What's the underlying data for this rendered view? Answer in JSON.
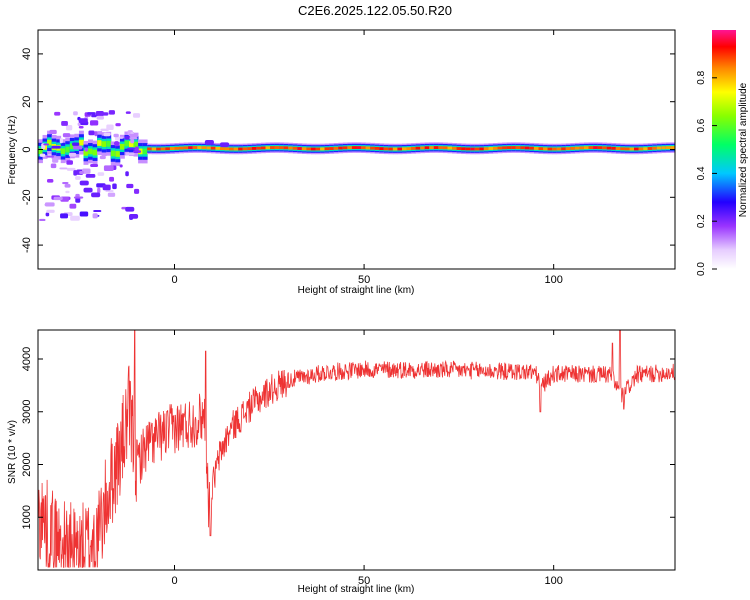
{
  "title": "C2E6.2025.122.05.50.R20",
  "chart_data": [
    {
      "type": "heatmap",
      "xlabel": "Height of straight line (km)",
      "ylabel": "Frequency (Hz)",
      "xlim": [
        -36,
        132
      ],
      "ylim": [
        -50,
        50
      ],
      "xticks": [
        0,
        50,
        100
      ],
      "yticks": [
        -40,
        -20,
        0,
        20,
        40
      ],
      "grid": false,
      "signal": {
        "centre_frequency_hz": 0.5,
        "dominant_amplitude": 0.9,
        "scatter_region_km": [
          -36,
          -10
        ],
        "scatter_frequency_range_hz": [
          -30,
          15
        ]
      },
      "colorbar": {
        "label": "Normalized spectral amplitude",
        "range": [
          0,
          1
        ],
        "ticks": [
          0,
          0.2,
          0.4,
          0.6,
          0.8
        ],
        "tick_labels": [
          "0.0",
          "0.2",
          "0.4",
          "0.6",
          "0.8"
        ],
        "stops": [
          {
            "v": 0.0,
            "color": "#ffffff"
          },
          {
            "v": 0.08,
            "color": "#e6ccff"
          },
          {
            "v": 0.18,
            "color": "#9933ff"
          },
          {
            "v": 0.28,
            "color": "#2200ff"
          },
          {
            "v": 0.4,
            "color": "#00c8ff"
          },
          {
            "v": 0.52,
            "color": "#00ff66"
          },
          {
            "v": 0.64,
            "color": "#88ff00"
          },
          {
            "v": 0.74,
            "color": "#ffff00"
          },
          {
            "v": 0.84,
            "color": "#ff8800"
          },
          {
            "v": 0.93,
            "color": "#ff0000"
          },
          {
            "v": 1.0,
            "color": "#ff1493"
          }
        ]
      }
    },
    {
      "type": "line",
      "xlabel": "Height of straight line (km)",
      "ylabel": "SNR (10 * v/v)",
      "xlim": [
        -36,
        132
      ],
      "ylim": [
        0,
        4550
      ],
      "xticks": [
        0,
        50,
        100
      ],
      "yticks": [
        1000,
        2000,
        3000,
        4000
      ],
      "grid": false,
      "series_color": "#ee3333",
      "trend": [
        {
          "x": -36,
          "y": 1100
        },
        {
          "x": -30,
          "y": 450
        },
        {
          "x": -25,
          "y": 350
        },
        {
          "x": -20,
          "y": 650
        },
        {
          "x": -17,
          "y": 1600
        },
        {
          "x": -14,
          "y": 2300
        },
        {
          "x": -12,
          "y": 3000
        },
        {
          "x": -10,
          "y": 2000
        },
        {
          "x": -7,
          "y": 2400
        },
        {
          "x": 0,
          "y": 2700
        },
        {
          "x": 5,
          "y": 2800
        },
        {
          "x": 8,
          "y": 2950
        },
        {
          "x": 9,
          "y": 1300
        },
        {
          "x": 12,
          "y": 2200
        },
        {
          "x": 15,
          "y": 2700
        },
        {
          "x": 20,
          "y": 3100
        },
        {
          "x": 25,
          "y": 3400
        },
        {
          "x": 30,
          "y": 3600
        },
        {
          "x": 40,
          "y": 3750
        },
        {
          "x": 50,
          "y": 3800
        },
        {
          "x": 60,
          "y": 3800
        },
        {
          "x": 80,
          "y": 3780
        },
        {
          "x": 95,
          "y": 3750
        },
        {
          "x": 97,
          "y": 3500
        },
        {
          "x": 100,
          "y": 3720
        },
        {
          "x": 115,
          "y": 3700
        },
        {
          "x": 118,
          "y": 3300
        },
        {
          "x": 122,
          "y": 3700
        },
        {
          "x": 132,
          "y": 3750
        }
      ],
      "peaks": [
        {
          "x": -10.5,
          "y": 4550
        },
        {
          "x": 8.2,
          "y": 4150
        },
        {
          "x": 115.5,
          "y": 4300
        },
        {
          "x": 117.5,
          "y": 4550
        }
      ],
      "dips": [
        {
          "x": 9.5,
          "y": 650
        },
        {
          "x": 96.5,
          "y": 3000
        },
        {
          "x": 118.5,
          "y": 3050
        }
      ]
    }
  ]
}
